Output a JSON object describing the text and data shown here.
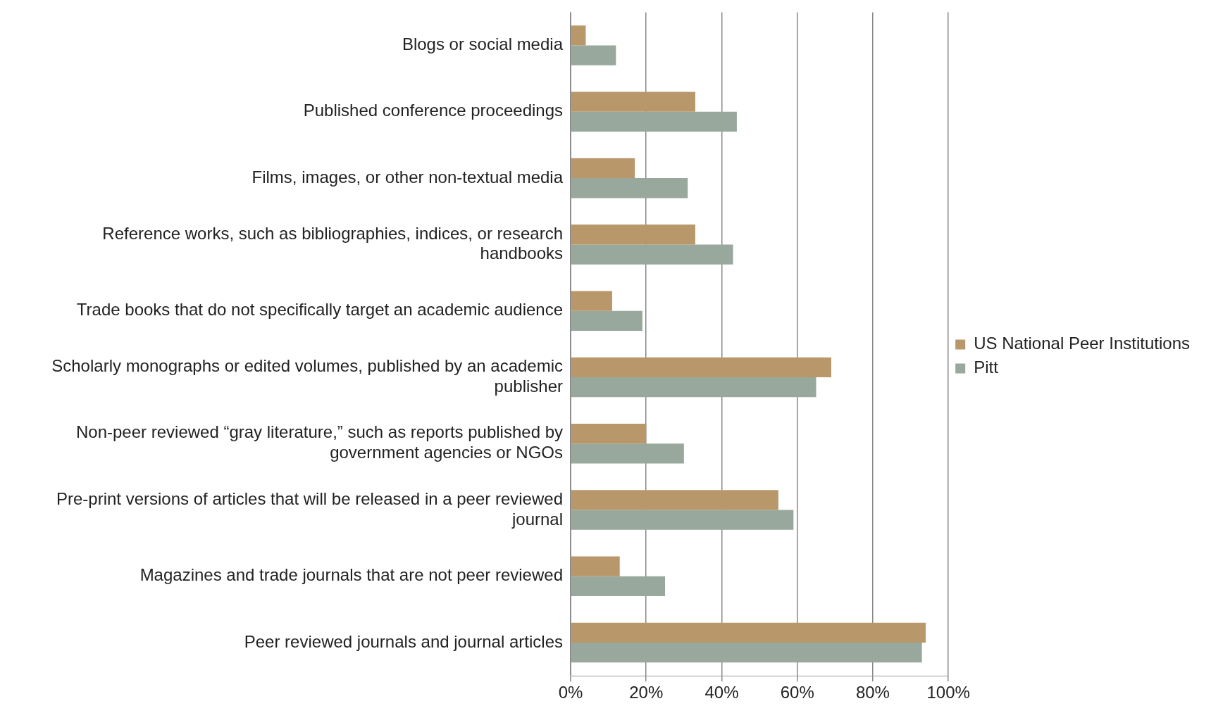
{
  "chart_data": {
    "type": "bar",
    "orientation": "horizontal",
    "categories": [
      "Blogs or social media",
      "Published conference proceedings",
      "Films, images, or other non-textual media",
      "Reference works, such as bibliographies, indices, or research handbooks",
      "Trade books that do not specifically target an academic audience",
      "Scholarly monographs or edited volumes, published by an academic publisher",
      "Non-peer reviewed “gray literature,” such as reports published by government agencies or NGOs",
      "Pre-print versions of articles that will be released in a peer reviewed journal",
      "Magazines and trade journals that are not peer reviewed",
      "Peer reviewed journals and journal articles"
    ],
    "series": [
      {
        "name": "US National Peer Institutions",
        "color": "#b8976a",
        "values": [
          4,
          33,
          17,
          33,
          11,
          69,
          20,
          55,
          13,
          94
        ]
      },
      {
        "name": "Pitt",
        "color": "#98a89c",
        "values": [
          12,
          44,
          31,
          43,
          19,
          65,
          30,
          59,
          25,
          93
        ]
      }
    ],
    "xlim": [
      0,
      100
    ],
    "xticks": [
      {
        "value": 0,
        "label": "0%"
      },
      {
        "value": 20,
        "label": "20%"
      },
      {
        "value": 40,
        "label": "40%"
      },
      {
        "value": 60,
        "label": "60%"
      },
      {
        "value": 80,
        "label": "80%"
      },
      {
        "value": 100,
        "label": "100%"
      }
    ],
    "grid": "x",
    "legend": "right"
  }
}
